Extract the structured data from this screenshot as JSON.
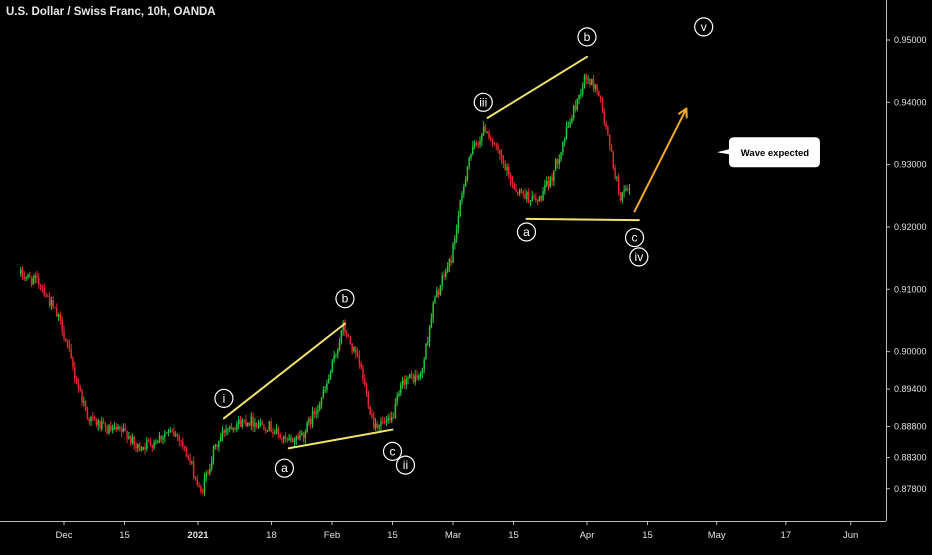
{
  "header": {
    "title": "U.S. Dollar / Swiss Franc, 10h, OANDA"
  },
  "chart_data": {
    "type": "candlestick",
    "title": "U.S. Dollar / Swiss Franc, 10h, OANDA",
    "symbol": "USDCHF",
    "timeframe": "10h",
    "source": "OANDA",
    "y_axis_ticks": [
      "0.95000",
      "0.94000",
      "0.93000",
      "0.92000",
      "0.91000",
      "0.90000",
      "0.89400",
      "0.88800",
      "0.88300",
      "0.87800"
    ],
    "x_axis_ticks": [
      "Dec",
      "15",
      "2021",
      "18",
      "Feb",
      "15",
      "Mar",
      "15",
      "Apr",
      "15",
      "May",
      "17",
      "Jun"
    ],
    "ylim": [
      0.8745,
      0.9545
    ],
    "colors": {
      "up": "#26c43a",
      "down": "#e6262f",
      "trendline": "#f2e36b",
      "projection": "#f5a623",
      "background": "#000000"
    },
    "price_path": [
      {
        "date": "2020-11-21",
        "price": 0.9125
      },
      {
        "date": "2020-11-26",
        "price": 0.911
      },
      {
        "date": "2020-12-01",
        "price": 0.904
      },
      {
        "date": "2020-12-04",
        "price": 0.896
      },
      {
        "date": "2020-12-07",
        "price": 0.8895
      },
      {
        "date": "2020-12-11",
        "price": 0.8875
      },
      {
        "date": "2020-12-16",
        "price": 0.887
      },
      {
        "date": "2020-12-18",
        "price": 0.8845
      },
      {
        "date": "2020-12-22",
        "price": 0.8855
      },
      {
        "date": "2020-12-25",
        "price": 0.887
      },
      {
        "date": "2020-12-28",
        "price": 0.8865
      },
      {
        "date": "2020-12-31",
        "price": 0.8815
      },
      {
        "date": "2021-01-02",
        "price": 0.877
      },
      {
        "date": "2021-01-05",
        "price": 0.884
      },
      {
        "date": "2021-01-08",
        "price": 0.888
      },
      {
        "date": "2021-01-13",
        "price": 0.889
      },
      {
        "date": "2021-01-18",
        "price": 0.888
      },
      {
        "date": "2021-01-22",
        "price": 0.8853
      },
      {
        "date": "2021-01-26",
        "price": 0.887
      },
      {
        "date": "2021-01-31",
        "price": 0.894
      },
      {
        "date": "2021-02-04",
        "price": 0.904
      },
      {
        "date": "2021-02-08",
        "price": 0.8975
      },
      {
        "date": "2021-02-11",
        "price": 0.8885
      },
      {
        "date": "2021-02-15",
        "price": 0.8885
      },
      {
        "date": "2021-02-18",
        "price": 0.8955
      },
      {
        "date": "2021-02-22",
        "price": 0.896
      },
      {
        "date": "2021-02-25",
        "price": 0.908
      },
      {
        "date": "2021-03-01",
        "price": 0.915
      },
      {
        "date": "2021-03-05",
        "price": 0.931
      },
      {
        "date": "2021-03-09",
        "price": 0.936
      },
      {
        "date": "2021-03-13",
        "price": 0.93
      },
      {
        "date": "2021-03-16",
        "price": 0.926
      },
      {
        "date": "2021-03-21",
        "price": 0.924
      },
      {
        "date": "2021-03-24",
        "price": 0.9275
      },
      {
        "date": "2021-03-28",
        "price": 0.936
      },
      {
        "date": "2021-04-01",
        "price": 0.944
      },
      {
        "date": "2021-04-04",
        "price": 0.942
      },
      {
        "date": "2021-04-06",
        "price": 0.935
      },
      {
        "date": "2021-04-09",
        "price": 0.925
      },
      {
        "date": "2021-04-11",
        "price": 0.9255
      }
    ],
    "annotations": {
      "lines": [
        {
          "name": "i-b-trendline",
          "kind": "trendline",
          "from": {
            "date": "2021-01-07",
            "price": 0.8893
          },
          "to": {
            "date": "2021-02-04",
            "price": 0.9045
          }
        },
        {
          "name": "a-c-trendline",
          "kind": "trendline",
          "from": {
            "date": "2021-01-22",
            "price": 0.8845
          },
          "to": {
            "date": "2021-02-15",
            "price": 0.8875
          }
        },
        {
          "name": "iii-b-trendline",
          "kind": "trendline",
          "from": {
            "date": "2021-03-09",
            "price": 0.9375
          },
          "to": {
            "date": "2021-04-01",
            "price": 0.9473
          }
        },
        {
          "name": "a-c-support-line",
          "kind": "trendline",
          "from": {
            "date": "2021-03-18",
            "price": 0.9213
          },
          "to": {
            "date": "2021-04-13",
            "price": 0.9211
          }
        },
        {
          "name": "wave-v-projection",
          "kind": "projection",
          "from": {
            "date": "2021-04-12",
            "price": 0.9225
          },
          "to": {
            "date": "2021-04-24",
            "price": 0.939
          }
        }
      ],
      "labels": [
        {
          "text": "i",
          "date": "2021-01-07",
          "price": 0.8925
        },
        {
          "text": "b",
          "date": "2021-02-04",
          "price": 0.9085
        },
        {
          "text": "a",
          "date": "2021-01-21",
          "price": 0.8813
        },
        {
          "text": "c",
          "date": "2021-02-15",
          "price": 0.884
        },
        {
          "text": "ii",
          "date": "2021-02-18",
          "price": 0.8818
        },
        {
          "text": "iii",
          "date": "2021-03-08",
          "price": 0.94
        },
        {
          "text": "b",
          "date": "2021-04-01",
          "price": 0.9505
        },
        {
          "text": "a",
          "date": "2021-03-18",
          "price": 0.9192
        },
        {
          "text": "c",
          "date": "2021-04-12",
          "price": 0.9183
        },
        {
          "text": "iv",
          "date": "2021-04-13",
          "price": 0.9152
        },
        {
          "text": "v",
          "date": "2021-04-28",
          "price": 0.9521
        }
      ],
      "callout": {
        "text": "Wave expected",
        "date": "2021-05-05",
        "price": 0.932
      }
    }
  }
}
